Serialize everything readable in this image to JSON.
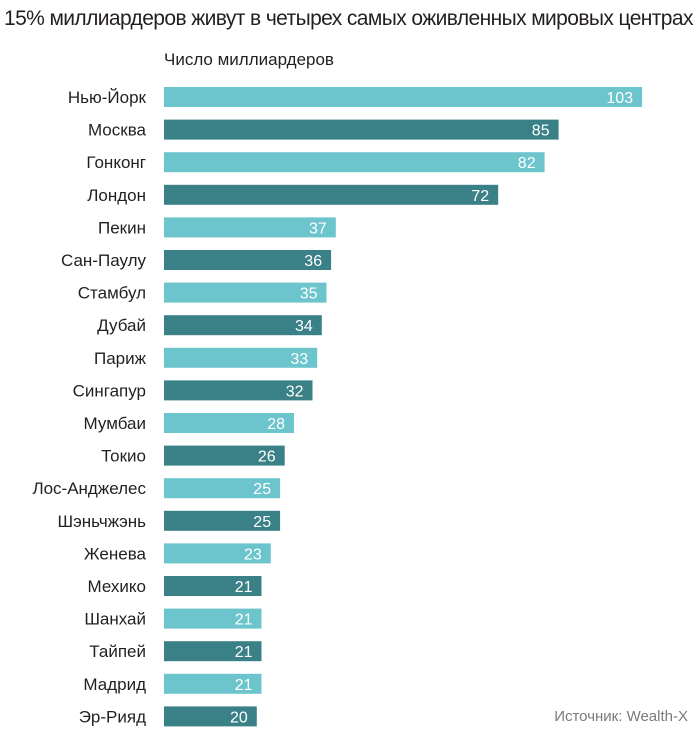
{
  "title": "15% миллиардеров живут в четырех самых оживленных мировых центрах",
  "source": "Источник: Wealth-X",
  "colors": {
    "light": "#6cc4cc",
    "dark": "#3a8087"
  },
  "chart_data": {
    "type": "bar",
    "orientation": "horizontal",
    "title": "15% миллиардеров живут в четырех самых оживленных мировых центрах",
    "subtitle": "Число миллиардеров",
    "categories": [
      "Нью-Йорк",
      "Москва",
      "Гонконг",
      "Лондон",
      "Пекин",
      "Сан-Паулу",
      "Стамбул",
      "Дубай",
      "Париж",
      "Сингапур",
      "Мумбаи",
      "Токио",
      "Лос-Анджелес",
      "Шэньчжэнь",
      "Женева",
      "Мехико",
      "Шанхай",
      "Тайпей",
      "Мадрид",
      "Эр-Рияд"
    ],
    "values": [
      103,
      85,
      82,
      72,
      37,
      36,
      35,
      34,
      33,
      32,
      28,
      26,
      25,
      25,
      23,
      21,
      21,
      21,
      21,
      20
    ],
    "data_labels": true,
    "bar_colors_alternate": [
      "light",
      "dark"
    ],
    "grid": false,
    "legend": "none"
  }
}
